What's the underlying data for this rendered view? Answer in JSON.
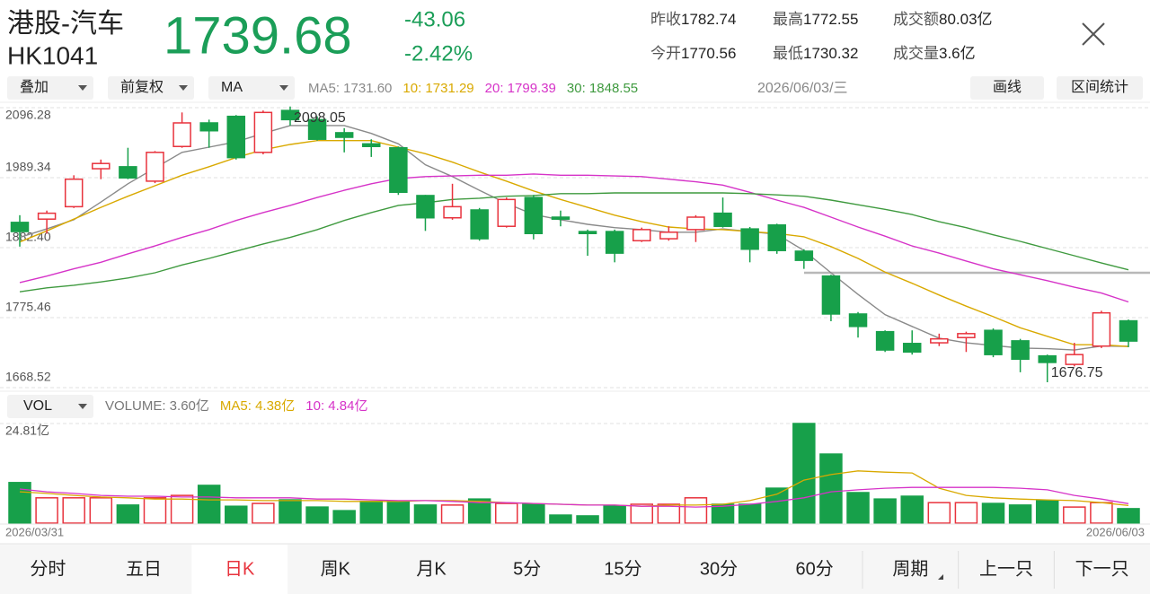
{
  "header": {
    "name": "港股-汽车",
    "code": "HK1041",
    "price": "1739.68",
    "change": "-43.06",
    "change_pct": "-2.42%"
  },
  "stats": [
    {
      "label": "昨收",
      "value": "1782.74"
    },
    {
      "label": "最高",
      "value": "1772.55"
    },
    {
      "label": "成交额",
      "value": "80.03亿"
    },
    {
      "label": "今开",
      "value": "1770.56"
    },
    {
      "label": "最低",
      "value": "1730.32"
    },
    {
      "label": "成交量",
      "value": "3.6亿"
    }
  ],
  "toolbar": {
    "dropdowns": [
      "叠加",
      "前复权",
      "MA"
    ],
    "date": "2026/06/03/三",
    "buttons": [
      "画线",
      "区间统计"
    ]
  },
  "chart_data": [
    {
      "type": "candlestick",
      "open": [
        1921,
        1926,
        1945,
        2003,
        2006,
        1984,
        2037,
        2073,
        2083,
        2028,
        2092,
        2078,
        2058,
        2041,
        2035,
        1962,
        1928,
        1940,
        1915,
        1959,
        1929,
        1907,
        1907,
        1893,
        1896,
        1910,
        1935,
        1911,
        1917,
        1877,
        1839,
        1781,
        1754,
        1736,
        1737,
        1745,
        1756,
        1740,
        1717,
        1704,
        1732,
        1770.56
      ],
      "high": [
        1932,
        1939,
        1993,
        2017,
        2035,
        2030,
        2089,
        2078,
        2085,
        2092,
        2098.05,
        2083,
        2065,
        2048,
        2037,
        1963,
        1980,
        1943,
        1959,
        1963,
        1939,
        1910,
        1910,
        1913,
        1915,
        1932,
        1959,
        1914,
        1919,
        1880,
        1841,
        1784,
        1756,
        1756,
        1751,
        1754,
        1759,
        1743,
        1719,
        1737,
        1786,
        1772.55
      ],
      "low": [
        1884,
        1904,
        1943,
        1987,
        1987,
        1981,
        2035,
        2035,
        2017,
        2025,
        2069,
        2046,
        2028,
        2021,
        1963,
        1908,
        1925,
        1893,
        1913,
        1895,
        1915,
        1870,
        1860,
        1891,
        1893,
        1891,
        1913,
        1860,
        1873,
        1850,
        1770,
        1745,
        1723,
        1719,
        1732,
        1723,
        1715,
        1692,
        1676.75,
        1701,
        1729,
        1730.32
      ],
      "close": [
        1907,
        1935,
        1987,
        2011,
        1989,
        2028,
        2073,
        2061,
        2020,
        2089,
        2078,
        2048,
        2051,
        2037,
        1967,
        1928,
        1945,
        1896,
        1956,
        1904,
        1926,
        1904,
        1874,
        1910,
        1906,
        1929,
        1915,
        1880,
        1878,
        1863,
        1781,
        1762,
        1726,
        1723,
        1743,
        1751,
        1719,
        1712,
        1707,
        1719,
        1782.74,
        1739.68
      ],
      "up_color": "#e8333d",
      "down_color": "#17a04a",
      "ylim": [
        1668.52,
        2096.28
      ],
      "yticks": [
        2096.28,
        1989.34,
        {
          "value": 1882.4,
          "label": "1882.40"
        },
        1775.46,
        1668.52
      ],
      "grid": true,
      "annotations": [
        2098.05,
        1676.75
      ],
      "series": [
        {
          "name": "MA5: 1731.60",
          "color": "#8a8a8a",
          "values": [
            1898,
            1911,
            1925,
            1952,
            1980,
            2004,
            2028,
            2036,
            2044,
            2057,
            2069,
            2069,
            2069,
            2057,
            2041,
            2009,
            1991,
            1970,
            1950,
            1933,
            1925,
            1918,
            1913,
            1910,
            1906,
            1906,
            1911,
            1907,
            1903,
            1878,
            1844,
            1811,
            1780,
            1762,
            1744,
            1737,
            1733,
            1729,
            1728,
            1726,
            1732,
            1731.6
          ]
        },
        {
          "name": "10: 1731.29",
          "color": "#d9a900",
          "values": [
            1891,
            1908,
            1926,
            1944,
            1961,
            1977,
            1993,
            2006,
            2020,
            2032,
            2040,
            2046,
            2046,
            2046,
            2036,
            2026,
            2013,
            1998,
            1984,
            1969,
            1956,
            1944,
            1932,
            1922,
            1914,
            1911,
            1910,
            1907,
            1904,
            1899,
            1884,
            1866,
            1845,
            1828,
            1810,
            1793,
            1777,
            1760,
            1747,
            1734,
            1734,
            1731.29
          ]
        },
        {
          "name": "20: 1799.39",
          "color": "#d633c8",
          "values": [
            1829,
            1839,
            1850,
            1860,
            1873,
            1885,
            1898,
            1910,
            1924,
            1936,
            1947,
            1959,
            1970,
            1980,
            1988,
            1991,
            1992,
            1993,
            1993,
            1995,
            1993,
            1993,
            1992,
            1991,
            1987,
            1983,
            1978,
            1967,
            1955,
            1944,
            1929,
            1914,
            1900,
            1885,
            1874,
            1862,
            1850,
            1841,
            1832,
            1822,
            1813,
            1799.39
          ]
        },
        {
          "name": "30: 1848.55",
          "color": "#3f9a3f",
          "values": [
            1815,
            1821,
            1825,
            1830,
            1836,
            1844,
            1856,
            1866,
            1877,
            1888,
            1898,
            1910,
            1924,
            1936,
            1947,
            1951,
            1956,
            1958,
            1961,
            1962,
            1965,
            1965,
            1966,
            1966,
            1966,
            1966,
            1966,
            1965,
            1963,
            1961,
            1955,
            1948,
            1941,
            1933,
            1922,
            1913,
            1902,
            1892,
            1881,
            1870,
            1859,
            1848.55
          ]
        }
      ]
    },
    {
      "type": "bar",
      "indicator": "VOL",
      "categories": [
        "2026/03/31",
        null,
        null,
        null,
        null,
        null,
        null,
        null,
        null,
        null,
        null,
        null,
        null,
        null,
        null,
        null,
        null,
        null,
        null,
        null,
        null,
        null,
        null,
        null,
        null,
        null,
        null,
        null,
        null,
        null,
        null,
        null,
        null,
        null,
        null,
        null,
        null,
        null,
        null,
        null,
        null,
        "2026/06/03"
      ],
      "ylim": [
        0,
        24.81
      ],
      "yticks": [
        {
          "value": 24.81,
          "label": "24.81亿"
        }
      ],
      "grid": true,
      "series": [
        {
          "name": "VOLUME: 3.60亿",
          "color": "#777777",
          "values": [
            10.1,
            6.3,
            6.3,
            6.3,
            4.5,
            6.3,
            6.9,
            9.4,
            4.2,
            4.9,
            5.8,
            4.0,
            3.1,
            5.4,
            5.4,
            4.5,
            4.5,
            6.0,
            4.9,
            4.7,
            2.0,
            1.8,
            4.2,
            4.7,
            4.7,
            6.3,
            4.7,
            4.7,
            8.7,
            24.81,
            17.2,
            7.6,
            6.0,
            6.7,
            5.1,
            5.1,
            4.9,
            4.5,
            5.6,
            4.0,
            5.1,
            3.6
          ]
        },
        {
          "name": "MA5: 4.38亿",
          "color": "#d9a900",
          "values": [
            7.8,
            7.4,
            6.9,
            6.5,
            6.3,
            6.0,
            6.0,
            5.8,
            5.8,
            5.6,
            5.6,
            5.6,
            5.4,
            5.4,
            5.4,
            5.6,
            5.6,
            5.4,
            5.1,
            4.9,
            4.7,
            4.5,
            4.5,
            4.2,
            4.5,
            4.5,
            4.7,
            5.6,
            7.2,
            10.7,
            12.1,
            13.0,
            12.7,
            12.5,
            8.7,
            6.9,
            6.3,
            6.0,
            5.8,
            5.6,
            5.1,
            4.38
          ]
        },
        {
          "name": "10: 4.84亿",
          "color": "#d633c8",
          "values": [
            8.5,
            7.8,
            7.4,
            6.9,
            6.7,
            6.7,
            6.5,
            6.5,
            6.3,
            6.3,
            6.3,
            6.0,
            6.0,
            5.8,
            5.6,
            5.6,
            5.4,
            5.1,
            5.1,
            4.9,
            4.7,
            4.5,
            4.5,
            4.2,
            4.2,
            4.0,
            4.2,
            4.7,
            5.4,
            6.3,
            7.8,
            8.3,
            8.7,
            8.9,
            8.9,
            8.9,
            8.9,
            8.7,
            8.3,
            6.9,
            6.0,
            4.84
          ]
        }
      ]
    }
  ],
  "tabs": {
    "items": [
      "分时",
      "五日",
      "日K",
      "周K",
      "月K",
      "5分",
      "15分",
      "30分",
      "60分",
      "周期",
      "上一只",
      "下一只"
    ],
    "selected": 2
  }
}
